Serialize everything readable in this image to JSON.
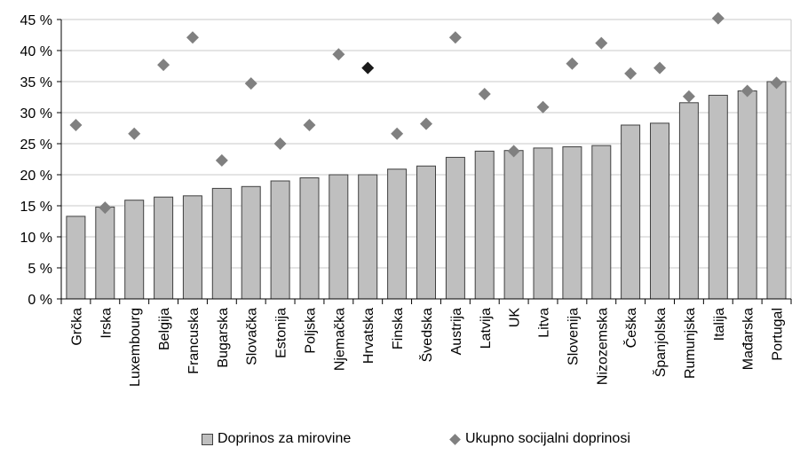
{
  "chart_data": {
    "type": "bar",
    "categories": [
      "Grčka",
      "Irska",
      "Luxembourg",
      "Belgija",
      "Francuska",
      "Bugarska",
      "Slovačka",
      "Estonija",
      "Poljska",
      "Njemačka",
      "Hrvatska",
      "Finska",
      "Švedska",
      "Austrija",
      "Latvija",
      "UK",
      "Litva",
      "Slovenija",
      "Nizozemska",
      "Češka",
      "Španjolska",
      "Rumunjska",
      "Italija",
      "Mađarska",
      "Portugal"
    ],
    "series": [
      {
        "name": "Doprinos za mirovine",
        "type": "bar",
        "color": "#bfbfbf",
        "values": [
          13.3,
          14.8,
          15.9,
          16.4,
          16.6,
          17.8,
          18.1,
          19.0,
          19.5,
          20.0,
          20.0,
          20.9,
          21.4,
          22.8,
          23.8,
          23.9,
          24.3,
          24.5,
          24.7,
          28.0,
          28.3,
          31.6,
          32.8,
          33.5,
          35.0
        ]
      },
      {
        "name": "Ukupno socijalni doprinosi",
        "type": "scatter",
        "color": "#808080",
        "highlight_color": "#1a1a1a",
        "highlight_category": "Hrvatska",
        "values": [
          28.0,
          14.7,
          26.6,
          37.7,
          42.1,
          22.3,
          34.7,
          25.0,
          28.0,
          39.4,
          37.2,
          26.6,
          28.2,
          42.1,
          33.0,
          23.8,
          30.9,
          37.9,
          41.2,
          36.3,
          37.2,
          32.6,
          45.2,
          33.5,
          34.8
        ]
      }
    ],
    "ylim": [
      0,
      45
    ],
    "yticks": [
      0,
      5,
      10,
      15,
      20,
      25,
      30,
      35,
      40,
      45
    ],
    "ytick_labels": [
      "0 %",
      "5 %",
      "10 %",
      "15 %",
      "20 %",
      "25 %",
      "30 %",
      "35 %",
      "40 %",
      "45 %"
    ],
    "grid": true,
    "legend_position": "bottom"
  },
  "legend": {
    "bars_label": "Doprinos za mirovine",
    "diamonds_label": "Ukupno socijalni doprinosi"
  }
}
